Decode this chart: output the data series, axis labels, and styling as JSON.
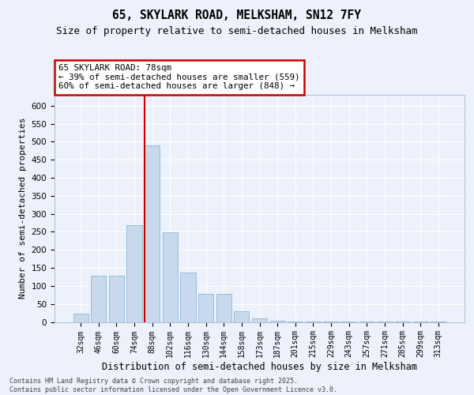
{
  "title1": "65, SKYLARK ROAD, MELKSHAM, SN12 7FY",
  "title2": "Size of property relative to semi-detached houses in Melksham",
  "xlabel": "Distribution of semi-detached houses by size in Melksham",
  "ylabel": "Number of semi-detached properties",
  "categories": [
    "32sqm",
    "46sqm",
    "60sqm",
    "74sqm",
    "88sqm",
    "102sqm",
    "116sqm",
    "130sqm",
    "144sqm",
    "158sqm",
    "173sqm",
    "187sqm",
    "201sqm",
    "215sqm",
    "229sqm",
    "243sqm",
    "257sqm",
    "271sqm",
    "285sqm",
    "299sqm",
    "313sqm"
  ],
  "values": [
    22,
    128,
    128,
    268,
    490,
    248,
    138,
    78,
    78,
    30,
    10,
    3,
    2,
    2,
    1,
    1,
    1,
    1,
    1,
    1,
    1
  ],
  "bar_color": "#c8d9ee",
  "bar_edge_color": "#7aadd4",
  "vline_index": 4,
  "vline_color": "#cc0000",
  "annotation_text": "65 SKYLARK ROAD: 78sqm\n← 39% of semi-detached houses are smaller (559)\n60% of semi-detached houses are larger (848) →",
  "annotation_box_edgecolor": "#cc0000",
  "ylim": [
    0,
    630
  ],
  "yticks": [
    0,
    50,
    100,
    150,
    200,
    250,
    300,
    350,
    400,
    450,
    500,
    550,
    600
  ],
  "bg_color": "#edf1fb",
  "grid_color": "#ffffff",
  "footer_text": "Contains HM Land Registry data © Crown copyright and database right 2025.\nContains public sector information licensed under the Open Government Licence v3.0.",
  "title1_fontsize": 10.5,
  "title2_fontsize": 9,
  "tick_fontsize": 7,
  "ylabel_fontsize": 8,
  "xlabel_fontsize": 8.5
}
